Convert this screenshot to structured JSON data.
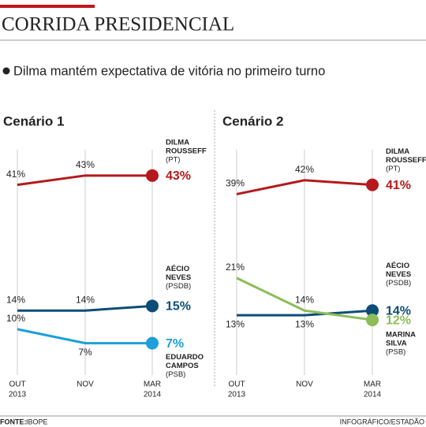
{
  "header": {
    "title": "CORRIDA PRESIDENCIAL",
    "subtitle": "Dilma mantém expectativa de vitória no primeiro turno"
  },
  "chart_data": [
    {
      "type": "line",
      "title": "Cenário 1",
      "categories": [
        [
          "OUT",
          "2013"
        ],
        [
          "NOV"
        ],
        [
          "MAR",
          "2014"
        ]
      ],
      "ylim": [
        0,
        45
      ],
      "series": [
        {
          "name": [
            "DILMA",
            "ROUSSEFF"
          ],
          "party": "(PT)",
          "color": "#b5191c",
          "values": [
            41,
            43,
            43
          ],
          "value_labels": [
            "41%",
            "43%",
            "43%"
          ]
        },
        {
          "name": [
            "AÉCIO",
            "NEVES"
          ],
          "party": "(PSDB)",
          "color": "#0c4d78",
          "values": [
            14,
            14,
            15
          ],
          "value_labels": [
            "14%",
            "14%",
            "15%"
          ]
        },
        {
          "name": [
            "EDUARDO",
            "CAMPOS"
          ],
          "party": "(PSB)",
          "color": "#1d9fd9",
          "values": [
            10,
            7,
            7
          ],
          "value_labels": [
            "10%",
            "7%",
            "7%"
          ]
        }
      ]
    },
    {
      "type": "line",
      "title": "Cenário 2",
      "categories": [
        [
          "OUT",
          "2013"
        ],
        [
          "NOV"
        ],
        [
          "MAR",
          "2014"
        ]
      ],
      "ylim": [
        0,
        45
      ],
      "series": [
        {
          "name": [
            "DILMA",
            "ROUSSEFF"
          ],
          "party": "(PT)",
          "color": "#b5191c",
          "values": [
            39,
            42,
            41
          ],
          "value_labels": [
            "39%",
            "42%",
            "41%"
          ]
        },
        {
          "name": [
            "AÉCIO",
            "NEVES"
          ],
          "party": "(PSDB)",
          "color": "#0c4d78",
          "values": [
            13,
            13,
            14
          ],
          "value_labels": [
            "13%",
            "13%",
            "14%"
          ]
        },
        {
          "name": [
            "MARINA",
            "SILVA"
          ],
          "party": "(PSB)",
          "color": "#8cbd58",
          "values": [
            21,
            14,
            12
          ],
          "value_labels": [
            "21%",
            "14%",
            "12%"
          ]
        }
      ]
    }
  ],
  "footer": {
    "source_label": "FONTE:",
    "source": "IBOPE",
    "credit": "INFOGRÁFICO/ESTADÃO"
  }
}
